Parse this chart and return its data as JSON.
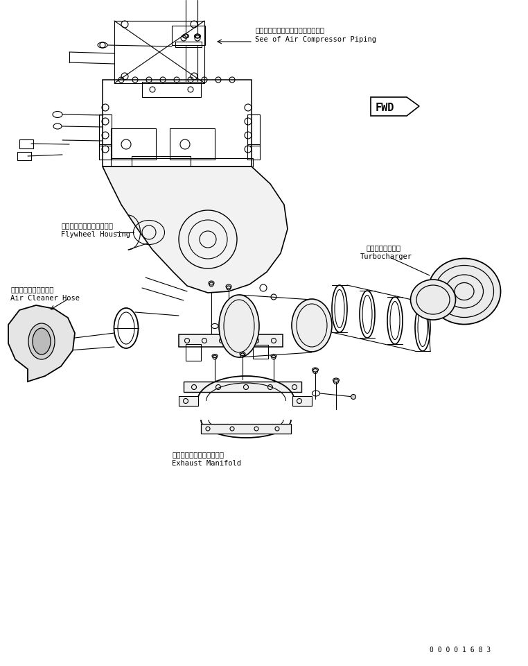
{
  "bg_color": "#ffffff",
  "line_color": "#000000",
  "fig_width": 7.62,
  "fig_height": 9.6,
  "dpi": 100,
  "labels": {
    "air_compressor_jp": "エアーコンプレッサパイピング参圖",
    "air_compressor_en": "See of Air Compressor Piping",
    "flywheel_jp": "フライホイールハウジング",
    "flywheel_en": "Flywheel Housing",
    "turbocharger_jp": "ターボチャージャ",
    "turbocharger_en": "Turbocharger",
    "air_cleaner_jp": "エアークリーナホース",
    "air_cleaner_en": "Air Cleaner Hose",
    "exhaust_jp": "エキゾーストマニホールド",
    "exhaust_en": "Exhaust Manifold",
    "part_no": "0 0 0 0 1 6 8 3",
    "fwd": "FWD"
  },
  "font_size_jp": 7.5,
  "font_size_en": 7.5,
  "font_size_small": 7
}
